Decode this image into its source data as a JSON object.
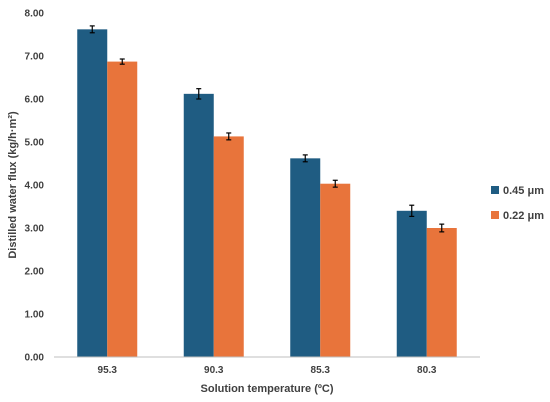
{
  "chart_data": {
    "type": "bar",
    "title": "",
    "xlabel": "Solution temperature (ºC)",
    "ylabel": "Distilled water flux (kg/h·m²)",
    "categories": [
      "95.3",
      "90.3",
      "85.3",
      "80.3"
    ],
    "ylim": [
      0,
      8
    ],
    "yticks": [
      "0.00",
      "1.00",
      "2.00",
      "3.00",
      "4.00",
      "5.00",
      "6.00",
      "7.00",
      "8.00"
    ],
    "grid": false,
    "legend_position": "right",
    "series": [
      {
        "name": "0.45 μm",
        "color": "#1f5c82",
        "values": [
          7.62,
          6.12,
          4.62,
          3.4
        ],
        "errors": [
          0.08,
          0.12,
          0.08,
          0.13
        ]
      },
      {
        "name": "0.22 μm",
        "color": "#e8743b",
        "values": [
          6.87,
          5.13,
          4.03,
          3.0
        ],
        "errors": [
          0.06,
          0.08,
          0.08,
          0.09
        ]
      }
    ]
  }
}
